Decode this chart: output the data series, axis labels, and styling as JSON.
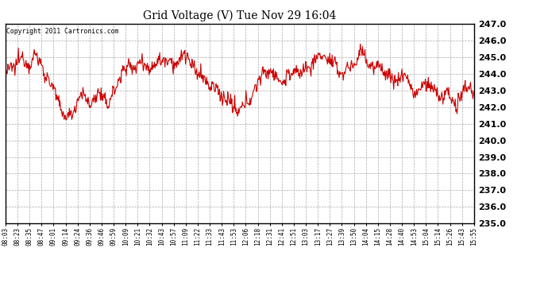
{
  "title": "Grid Voltage (V) Tue Nov 29 16:04",
  "copyright_text": "Copyright 2011 Cartronics.com",
  "line_color": "#cc0000",
  "background_color": "#ffffff",
  "plot_background": "#ffffff",
  "grid_color": "#aaaaaa",
  "ylim": [
    235.0,
    247.0
  ],
  "yticks": [
    235.0,
    236.0,
    237.0,
    238.0,
    239.0,
    240.0,
    241.0,
    242.0,
    243.0,
    244.0,
    245.0,
    246.0,
    247.0
  ],
  "xtick_labels": [
    "08:03",
    "08:23",
    "08:35",
    "08:47",
    "09:01",
    "09:14",
    "09:24",
    "09:36",
    "09:46",
    "09:59",
    "10:09",
    "10:21",
    "10:32",
    "10:43",
    "10:57",
    "11:09",
    "11:22",
    "11:33",
    "11:43",
    "11:53",
    "12:06",
    "12:18",
    "12:31",
    "12:41",
    "12:51",
    "13:03",
    "13:17",
    "13:27",
    "13:39",
    "13:50",
    "14:04",
    "14:15",
    "14:28",
    "14:40",
    "14:53",
    "15:04",
    "15:14",
    "15:26",
    "15:43",
    "15:55"
  ],
  "waypoints_t": [
    0.0,
    0.01,
    0.02,
    0.03,
    0.04,
    0.05,
    0.06,
    0.07,
    0.08,
    0.09,
    0.1,
    0.11,
    0.12,
    0.13,
    0.14,
    0.15,
    0.16,
    0.17,
    0.18,
    0.19,
    0.2,
    0.21,
    0.22,
    0.23,
    0.24,
    0.25,
    0.26,
    0.27,
    0.28,
    0.29,
    0.3,
    0.31,
    0.32,
    0.33,
    0.34,
    0.35,
    0.36,
    0.37,
    0.38,
    0.39,
    0.4,
    0.41,
    0.42,
    0.43,
    0.44,
    0.45,
    0.46,
    0.47,
    0.48,
    0.49,
    0.5,
    0.51,
    0.52,
    0.53,
    0.54,
    0.55,
    0.56,
    0.57,
    0.58,
    0.59,
    0.6,
    0.61,
    0.62,
    0.63,
    0.64,
    0.65,
    0.66,
    0.67,
    0.68,
    0.69,
    0.7,
    0.71,
    0.72,
    0.73,
    0.74,
    0.75,
    0.76,
    0.77,
    0.78,
    0.79,
    0.8,
    0.81,
    0.82,
    0.83,
    0.84,
    0.85,
    0.86,
    0.87,
    0.88,
    0.89,
    0.9,
    0.91,
    0.92,
    0.93,
    0.94,
    0.95,
    0.96,
    0.97,
    0.98,
    0.99,
    1.0
  ],
  "waypoints_v": [
    244.0,
    244.2,
    244.5,
    245.0,
    244.8,
    244.5,
    245.2,
    244.8,
    244.3,
    243.8,
    243.2,
    242.5,
    241.8,
    241.3,
    241.5,
    242.2,
    242.8,
    242.5,
    242.2,
    242.5,
    242.8,
    242.5,
    242.2,
    242.8,
    243.5,
    244.2,
    244.5,
    244.3,
    244.5,
    244.8,
    244.5,
    244.3,
    244.6,
    244.8,
    245.0,
    244.8,
    244.5,
    244.8,
    245.2,
    244.8,
    244.5,
    244.0,
    243.8,
    243.5,
    243.2,
    243.0,
    242.8,
    242.5,
    242.2,
    241.8,
    241.8,
    242.0,
    242.5,
    243.0,
    243.5,
    244.0,
    244.3,
    244.0,
    243.8,
    243.5,
    243.8,
    244.0,
    244.2,
    244.0,
    244.3,
    244.5,
    244.8,
    245.0,
    245.2,
    244.8,
    244.5,
    244.3,
    244.0,
    244.3,
    244.5,
    244.8,
    245.5,
    244.8,
    244.5,
    244.2,
    244.5,
    244.2,
    243.8,
    243.5,
    243.8,
    244.0,
    243.5,
    243.0,
    242.8,
    243.2,
    243.5,
    243.2,
    242.8,
    242.5,
    243.0,
    242.5,
    242.0,
    242.5,
    243.0,
    243.2,
    243.0
  ],
  "noise_std": 0.22,
  "n_points": 800,
  "seed": 12345
}
